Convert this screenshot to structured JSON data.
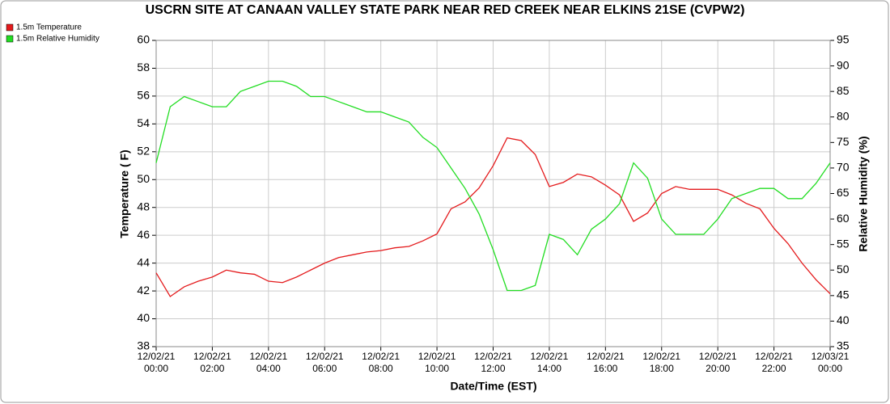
{
  "chart_data": {
    "type": "line",
    "title": "USCRN SITE AT CANAAN VALLEY STATE PARK NEAR RED CREEK NEAR ELKINS 21SE (CVPW2)",
    "xlabel": "Date/Time (EST)",
    "ylabel": "Temperature ( F)",
    "y2label": "Relative Humidity (%)",
    "legend": "top-left",
    "grid": true,
    "x": [
      0,
      0.5,
      1,
      1.5,
      2,
      2.5,
      3,
      3.5,
      4,
      4.5,
      5,
      5.5,
      6,
      6.5,
      7,
      7.5,
      8,
      8.5,
      9,
      9.5,
      10,
      10.5,
      11,
      11.5,
      12,
      12.5,
      13,
      13.5,
      14,
      14.5,
      15,
      15.5,
      16,
      16.5,
      17,
      17.5,
      18,
      18.5,
      19,
      19.5,
      20,
      20.5,
      21,
      21.5,
      22,
      22.5,
      23,
      23.5,
      24
    ],
    "xlim": [
      0,
      24
    ],
    "xticks": [
      {
        "value": 0,
        "label": [
          "12/02/21",
          "00:00"
        ]
      },
      {
        "value": 2,
        "label": [
          "12/02/21",
          "02:00"
        ]
      },
      {
        "value": 4,
        "label": [
          "12/02/21",
          "04:00"
        ]
      },
      {
        "value": 6,
        "label": [
          "12/02/21",
          "06:00"
        ]
      },
      {
        "value": 8,
        "label": [
          "12/02/21",
          "08:00"
        ]
      },
      {
        "value": 10,
        "label": [
          "12/02/21",
          "10:00"
        ]
      },
      {
        "value": 12,
        "label": [
          "12/02/21",
          "12:00"
        ]
      },
      {
        "value": 14,
        "label": [
          "12/02/21",
          "14:00"
        ]
      },
      {
        "value": 16,
        "label": [
          "12/02/21",
          "16:00"
        ]
      },
      {
        "value": 18,
        "label": [
          "12/02/21",
          "18:00"
        ]
      },
      {
        "value": 20,
        "label": [
          "12/02/21",
          "20:00"
        ]
      },
      {
        "value": 22,
        "label": [
          "12/02/21",
          "22:00"
        ]
      },
      {
        "value": 24,
        "label": [
          "12/03/21",
          "00:00"
        ]
      }
    ],
    "ylim": [
      38,
      60
    ],
    "yticks": [
      38,
      40,
      42,
      44,
      46,
      48,
      50,
      52,
      54,
      56,
      58,
      60
    ],
    "y2lim": [
      35,
      95
    ],
    "y2ticks": [
      35,
      40,
      45,
      50,
      55,
      60,
      65,
      70,
      75,
      80,
      85,
      90,
      95
    ],
    "series": [
      {
        "name": "1.5m Temperature",
        "color": "#e41a1c",
        "axis": "y",
        "values": [
          43.3,
          41.6,
          42.3,
          42.7,
          43.0,
          43.5,
          43.3,
          43.2,
          42.7,
          42.6,
          43.0,
          43.5,
          44.0,
          44.4,
          44.6,
          44.8,
          44.9,
          45.1,
          45.2,
          45.6,
          46.1,
          47.9,
          48.4,
          49.4,
          51.0,
          53.0,
          52.8,
          51.8,
          49.5,
          49.8,
          50.4,
          50.2,
          49.6,
          48.9,
          47.0,
          47.6,
          49.0,
          49.5,
          49.3,
          49.3,
          49.3,
          48.9,
          48.3,
          47.9,
          46.5,
          45.4,
          44.0,
          42.8,
          41.8
        ]
      },
      {
        "name": "1.5m Relative Humidity",
        "color": "#22dd22",
        "axis": "y2",
        "values": [
          71,
          82,
          84,
          83,
          82,
          82,
          85,
          86,
          87,
          87,
          86,
          84,
          84,
          83,
          82,
          81,
          81,
          80,
          79,
          76,
          74,
          70,
          66,
          61,
          54,
          46,
          46,
          47,
          57,
          56,
          53,
          58,
          60,
          63,
          71,
          68,
          60,
          57,
          57,
          57,
          60,
          64,
          65,
          66,
          66,
          64,
          64,
          67,
          71
        ]
      }
    ]
  }
}
